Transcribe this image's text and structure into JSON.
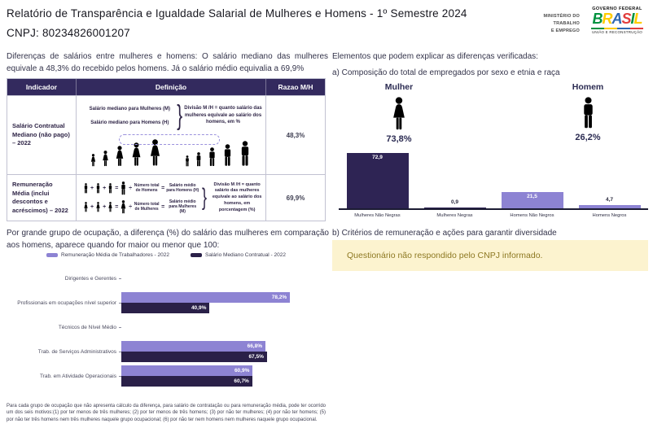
{
  "header": {
    "title": "Relatório de Transparência e Igualdade Salarial de Mulheres e Homens - 1º Semestre 2024",
    "cnpj": "CNPJ: 80234826001207",
    "ministry": {
      "l1": "MINISTÉRIO DO",
      "l2": "TRABALHO",
      "l3": "E EMPREGO"
    },
    "gov": {
      "federal": "GOVERNO FEDERAL",
      "brasil": "BRASIL",
      "slogan": "UNIÃO E RECONSTRUÇÃO"
    }
  },
  "left": {
    "intro": "Diferenças de salários entre mulheres e homens: O salário mediano das mulheres equivale a 48,3% do recebido pelos homens. Já o salário médio equivalia a 69,9%",
    "table": {
      "headers": [
        "Indicador",
        "Definição",
        "Razao M/H"
      ],
      "rows": [
        {
          "indicator": "Salário Contratual Mediano (não pago) – 2022",
          "ratio": "48,3%"
        },
        {
          "indicator": "Remuneração Média (inclui descontos e acréscimos) – 2022",
          "ratio": "69,9%"
        }
      ]
    },
    "row1def": {
      "line1": "Salário mediano para Mulheres (M)",
      "line2": "Salário mediano para Homens (H)",
      "brace": "}",
      "note": "Divisão M /H = quanto salário das mulheres equivale ao salário dos homens, em %"
    },
    "row2def": {
      "plus": "+",
      "equals": "=",
      "divide": "÷",
      "brace": "}",
      "male_count": "Número total de Homens",
      "male_avg": "Salário médio para Homens (H)",
      "female_count": "Número total de Mulheres",
      "female_avg": "Salário médio para Mulheres (M)",
      "note": "Divisão M /H = quanto salário das mulheres equivale ao salário dos homens, em porcentagem (%)"
    },
    "occupation_heading": "Por grande grupo de ocupação, a diferença (%) do salário das mulheres em comparação aos homens, aparece quando for maior ou menor que 100:",
    "footnote": "Para cada grupo de ocupação que não apresenta cálculo da diferença, para salário de contratação ou para remuneração média, pode ter ocorrido um dos seis motivos:(1) por ter menos de três mulheres; (2) por ter menos de três homens; (3) por não ter mulheres; (4) por não ter homens; (5) por não ter três homens nem três mulheres naquele grupo ocupacional; (6) por não ter nem homens nem mulheres naquele grupo ocupacional."
  },
  "right": {
    "heading": "Elementos que podem explicar as diferenças verificadas:",
    "sub_a": "a) Composição do total de empregados por sexo e etnia e raça",
    "mulher": {
      "label": "Mulher",
      "value": "73,8%"
    },
    "homem": {
      "label": "Homem",
      "value": "26,2%"
    },
    "sub_b": "b) Critérios de remuneração e ações para garantir diversidade",
    "notice": "Questionário não respondido pelo CNPJ informado."
  },
  "colors": {
    "dark_purple": "#2e2454",
    "table_header_purple": "#332a5e",
    "light_purple": "#8d83d3",
    "notice_bg": "#fcf3cf",
    "notice_text": "#8d7822",
    "brasil_letters": [
      "#00923f",
      "#ffcc00",
      "#2e67b1",
      "#e23d3d",
      "#00923f",
      "#ffcc00"
    ]
  },
  "chart_data": [
    {
      "type": "bar",
      "orientation": "vertical",
      "title": "a) Composição do total de empregados por sexo e etnia e raça",
      "categories": [
        "Mulheres Não Negras",
        "Mulheres Negras",
        "Homens Não Negros",
        "Homens Negros"
      ],
      "values": [
        72.9,
        0.9,
        21.5,
        4.7
      ],
      "labels": [
        "72,9",
        "0,9",
        "21,5",
        "4,7"
      ],
      "bar_colors": [
        "#2e2454",
        "#2e2454",
        "#8d83d3",
        "#8d83d3"
      ],
      "extra": {
        "mulher_total": 73.8,
        "homem_total": 26.2
      },
      "xlabel": "",
      "ylabel": "",
      "ylim": [
        0,
        80
      ],
      "grid": false,
      "legend": "none"
    },
    {
      "type": "bar",
      "orientation": "horizontal",
      "title": "Por grande grupo de ocupação, a diferença (%) do salário das mulheres em comparação aos homens",
      "categories": [
        "Dirigentes e Gerentes",
        "Profissionais em ocupações nível superior",
        "Técnicos de Nível Médio",
        "Trab. de Serviços Administrativos",
        "Trab. em Atividade Operacionais"
      ],
      "series": [
        {
          "name": "Remuneração Média de Trabalhadores - 2022",
          "color": "#8d83d3",
          "values": [
            null,
            78.2,
            null,
            66.8,
            60.9
          ],
          "labels": [
            "",
            "78,2%",
            "",
            "66,8%",
            "60,9%"
          ]
        },
        {
          "name": "Salário Mediano Contratual - 2022",
          "color": "#2a2048",
          "values": [
            null,
            40.9,
            null,
            67.5,
            60.7
          ],
          "labels": [
            "",
            "40,9%",
            "",
            "67,5%",
            "60,7%"
          ]
        }
      ],
      "xlim": [
        0,
        100
      ],
      "grid": false,
      "legend": "top-center"
    }
  ]
}
